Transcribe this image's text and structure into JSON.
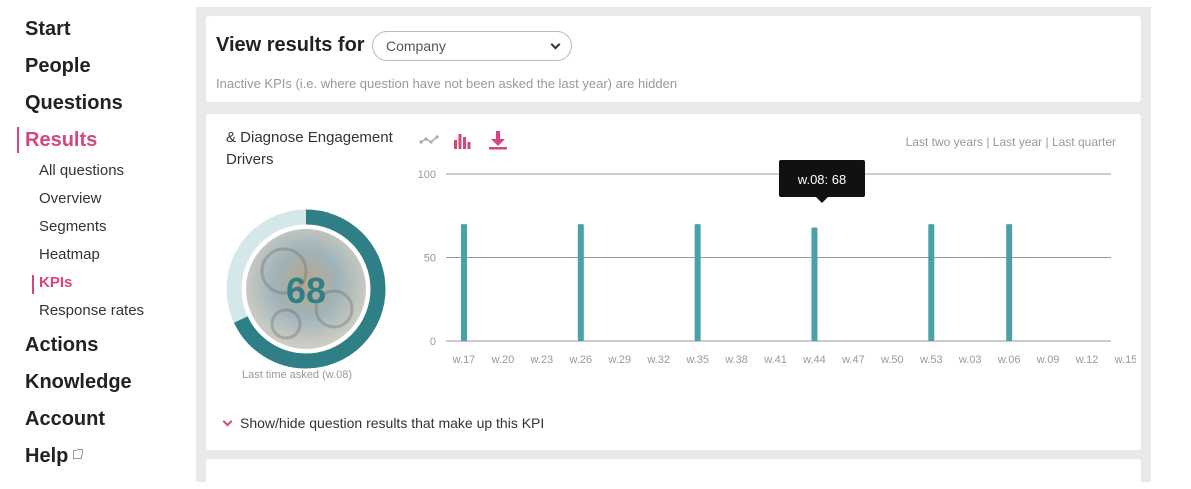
{
  "sidebar": {
    "items": [
      "Start",
      "People",
      "Questions",
      "Results",
      "Actions",
      "Knowledge",
      "Account",
      "Help"
    ],
    "active": "Results",
    "sub_items": [
      "All questions",
      "Overview",
      "Segments",
      "Heatmap",
      "KPIs",
      "Response rates"
    ],
    "active_sub": "KPIs"
  },
  "filter": {
    "title": "View results for",
    "selected": "Company",
    "note": "Inactive KPIs (i.e. where question have not been asked the last year) are hidden"
  },
  "kpi": {
    "title": "& Diagnose Engagement Drivers",
    "score": "68",
    "last_asked": "Last time asked (w.08)",
    "toggle_label": "Show/hide question results that make up this KPI",
    "icons": [
      "line-chart-icon",
      "bar-chart-icon",
      "download-icon"
    ],
    "tooltip": "w.08: 68",
    "time_ranges": [
      "Last two years",
      "Last year",
      "Last quarter"
    ],
    "colors": {
      "accent": "#d6457f",
      "teal": "#2f7f86",
      "teal_light": "#d4e8ea",
      "bar": "#4aa1aa"
    }
  },
  "chart_data": {
    "type": "bar",
    "categories": [
      "w.17",
      "w.20",
      "w.23",
      "w.26",
      "w.29",
      "w.32",
      "w.35",
      "w.38",
      "w.41",
      "w.44",
      "w.47",
      "w.50",
      "w.53",
      "w.03",
      "w.06",
      "w.09",
      "w.12",
      "w.15"
    ],
    "values": [
      70,
      null,
      null,
      70,
      null,
      null,
      70,
      null,
      null,
      68,
      null,
      null,
      70,
      null,
      70,
      null,
      null,
      null
    ],
    "ylim": [
      0,
      100
    ],
    "yticks": [
      0,
      50,
      100
    ],
    "grid": true
  }
}
